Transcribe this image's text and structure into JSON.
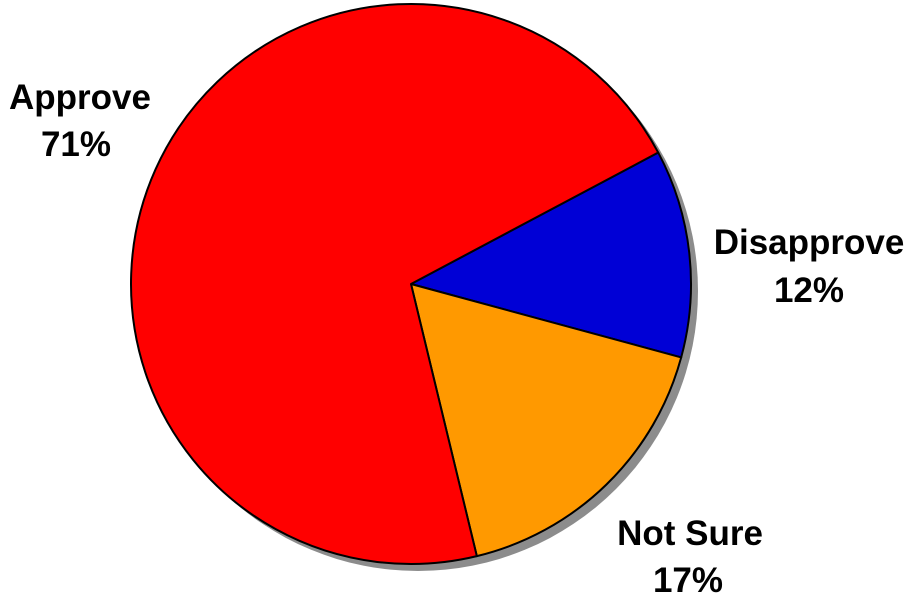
{
  "chart_data": {
    "type": "pie",
    "title": "",
    "slices": [
      {
        "label": "Approve",
        "value": 71,
        "value_label": "71%",
        "color": "#ff0000"
      },
      {
        "label": "Disapprove",
        "value": 12,
        "value_label": "12%",
        "color": "#0000d6"
      },
      {
        "label": "Not Sure",
        "value": 17,
        "value_label": "17%",
        "color": "#ff9900"
      }
    ],
    "shadow": true,
    "legend": "none"
  }
}
